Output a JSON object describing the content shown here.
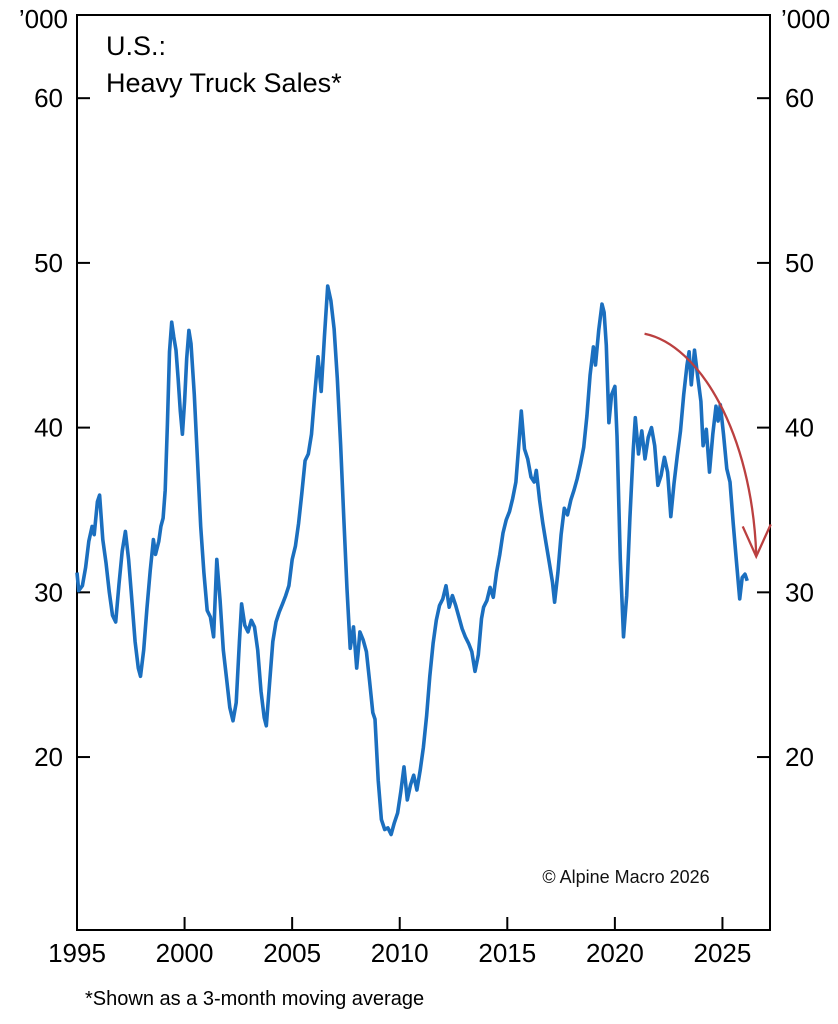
{
  "chart_data": {
    "type": "line",
    "title_line1": "U.S.:",
    "title_line2": "Heavy Truck Sales*",
    "unit_label_left": "’000",
    "unit_label_right": "’000",
    "copyright": "© Alpine Macro 2026",
    "footnote": "*Shown as a 3-month moving average",
    "grid": false,
    "x_axis": {
      "range": [
        1995,
        2027.21
      ],
      "tick_years": [
        2000,
        2005,
        2010,
        2015,
        2020,
        2025
      ],
      "labels": [
        {
          "text": "1995",
          "year": 1995
        },
        {
          "text": "2000",
          "year": 2000
        },
        {
          "text": "2005",
          "year": 2005
        },
        {
          "text": "2010",
          "year": 2010
        },
        {
          "text": "2015",
          "year": 2015
        },
        {
          "text": "2020",
          "year": 2020
        },
        {
          "text": "2025",
          "year": 2025
        }
      ]
    },
    "y_axis": {
      "range": [
        9.5,
        65.05
      ],
      "ticks": [
        20,
        30,
        40,
        50,
        60
      ]
    },
    "series": [
      {
        "name": "heavy-truck-sales-3mma",
        "color": "#1b6fbf",
        "points": [
          [
            1995.0,
            31.2
          ],
          [
            1995.08,
            30.1
          ],
          [
            1995.25,
            30.4
          ],
          [
            1995.4,
            31.5
          ],
          [
            1995.55,
            33.1
          ],
          [
            1995.7,
            34.0
          ],
          [
            1995.8,
            33.5
          ],
          [
            1995.95,
            35.5
          ],
          [
            1996.05,
            35.9
          ],
          [
            1996.2,
            33.2
          ],
          [
            1996.35,
            31.8
          ],
          [
            1996.5,
            30.0
          ],
          [
            1996.65,
            28.6
          ],
          [
            1996.8,
            28.2
          ],
          [
            1996.95,
            30.5
          ],
          [
            1997.1,
            32.5
          ],
          [
            1997.25,
            33.7
          ],
          [
            1997.4,
            32.0
          ],
          [
            1997.55,
            29.5
          ],
          [
            1997.7,
            27.0
          ],
          [
            1997.85,
            25.4
          ],
          [
            1997.95,
            24.9
          ],
          [
            1998.1,
            26.5
          ],
          [
            1998.25,
            29.0
          ],
          [
            1998.4,
            31.3
          ],
          [
            1998.55,
            33.2
          ],
          [
            1998.65,
            32.3
          ],
          [
            1998.8,
            33.1
          ],
          [
            1998.9,
            34.0
          ],
          [
            1999.0,
            34.5
          ],
          [
            1999.1,
            36.2
          ],
          [
            1999.2,
            40.2
          ],
          [
            1999.3,
            44.6
          ],
          [
            1999.4,
            46.4
          ],
          [
            1999.5,
            45.5
          ],
          [
            1999.6,
            44.7
          ],
          [
            1999.7,
            43.0
          ],
          [
            1999.8,
            41.0
          ],
          [
            1999.9,
            39.6
          ],
          [
            2000.0,
            41.6
          ],
          [
            2000.1,
            44.2
          ],
          [
            2000.2,
            45.9
          ],
          [
            2000.3,
            45.1
          ],
          [
            2000.45,
            42.0
          ],
          [
            2000.6,
            38.0
          ],
          [
            2000.75,
            34.0
          ],
          [
            2000.9,
            31.2
          ],
          [
            2001.05,
            28.9
          ],
          [
            2001.2,
            28.5
          ],
          [
            2001.35,
            27.3
          ],
          [
            2001.5,
            32.0
          ],
          [
            2001.65,
            29.5
          ],
          [
            2001.8,
            26.5
          ],
          [
            2001.95,
            24.8
          ],
          [
            2002.1,
            23.0
          ],
          [
            2002.25,
            22.2
          ],
          [
            2002.4,
            23.3
          ],
          [
            2002.55,
            27.0
          ],
          [
            2002.65,
            29.3
          ],
          [
            2002.8,
            28.0
          ],
          [
            2002.95,
            27.6
          ],
          [
            2003.1,
            28.3
          ],
          [
            2003.25,
            27.9
          ],
          [
            2003.4,
            26.5
          ],
          [
            2003.55,
            24.0
          ],
          [
            2003.7,
            22.4
          ],
          [
            2003.8,
            21.9
          ],
          [
            2003.95,
            24.5
          ],
          [
            2004.1,
            27.0
          ],
          [
            2004.25,
            28.2
          ],
          [
            2004.4,
            28.8
          ],
          [
            2004.55,
            29.3
          ],
          [
            2004.7,
            29.8
          ],
          [
            2004.85,
            30.4
          ],
          [
            2005.0,
            32.0
          ],
          [
            2005.15,
            32.8
          ],
          [
            2005.3,
            34.2
          ],
          [
            2005.45,
            36.0
          ],
          [
            2005.6,
            38.0
          ],
          [
            2005.75,
            38.4
          ],
          [
            2005.9,
            39.6
          ],
          [
            2006.05,
            42.0
          ],
          [
            2006.2,
            44.3
          ],
          [
            2006.35,
            42.2
          ],
          [
            2006.5,
            45.5
          ],
          [
            2006.65,
            48.6
          ],
          [
            2006.8,
            47.7
          ],
          [
            2006.95,
            46.0
          ],
          [
            2007.1,
            43.0
          ],
          [
            2007.25,
            39.0
          ],
          [
            2007.4,
            34.5
          ],
          [
            2007.55,
            30.2
          ],
          [
            2007.7,
            26.6
          ],
          [
            2007.85,
            27.9
          ],
          [
            2008.0,
            25.4
          ],
          [
            2008.15,
            27.6
          ],
          [
            2008.3,
            27.1
          ],
          [
            2008.45,
            26.4
          ],
          [
            2008.6,
            24.6
          ],
          [
            2008.75,
            22.7
          ],
          [
            2008.85,
            22.3
          ],
          [
            2009.0,
            18.6
          ],
          [
            2009.15,
            16.2
          ],
          [
            2009.3,
            15.6
          ],
          [
            2009.45,
            15.7
          ],
          [
            2009.6,
            15.3
          ],
          [
            2009.75,
            16.0
          ],
          [
            2009.9,
            16.6
          ],
          [
            2010.05,
            17.9
          ],
          [
            2010.2,
            19.4
          ],
          [
            2010.35,
            17.4
          ],
          [
            2010.5,
            18.3
          ],
          [
            2010.65,
            18.9
          ],
          [
            2010.8,
            18.0
          ],
          [
            2010.95,
            19.2
          ],
          [
            2011.1,
            20.6
          ],
          [
            2011.25,
            22.5
          ],
          [
            2011.4,
            24.9
          ],
          [
            2011.55,
            26.9
          ],
          [
            2011.7,
            28.3
          ],
          [
            2011.85,
            29.2
          ],
          [
            2012.0,
            29.6
          ],
          [
            2012.15,
            30.4
          ],
          [
            2012.3,
            29.1
          ],
          [
            2012.45,
            29.8
          ],
          [
            2012.6,
            29.2
          ],
          [
            2012.75,
            28.5
          ],
          [
            2012.9,
            27.8
          ],
          [
            2013.05,
            27.3
          ],
          [
            2013.2,
            26.9
          ],
          [
            2013.35,
            26.4
          ],
          [
            2013.5,
            25.2
          ],
          [
            2013.65,
            26.2
          ],
          [
            2013.8,
            28.4
          ],
          [
            2013.9,
            29.1
          ],
          [
            2014.05,
            29.5
          ],
          [
            2014.2,
            30.3
          ],
          [
            2014.35,
            29.7
          ],
          [
            2014.5,
            31.2
          ],
          [
            2014.65,
            32.3
          ],
          [
            2014.8,
            33.6
          ],
          [
            2014.95,
            34.4
          ],
          [
            2015.1,
            34.9
          ],
          [
            2015.25,
            35.7
          ],
          [
            2015.4,
            36.7
          ],
          [
            2015.55,
            39.2
          ],
          [
            2015.65,
            41.0
          ],
          [
            2015.8,
            38.7
          ],
          [
            2015.95,
            38.1
          ],
          [
            2016.1,
            37.0
          ],
          [
            2016.25,
            36.7
          ],
          [
            2016.35,
            37.4
          ],
          [
            2016.5,
            35.6
          ],
          [
            2016.65,
            34.2
          ],
          [
            2016.8,
            33.0
          ],
          [
            2016.95,
            31.8
          ],
          [
            2017.1,
            30.6
          ],
          [
            2017.2,
            29.4
          ],
          [
            2017.35,
            31.2
          ],
          [
            2017.5,
            33.5
          ],
          [
            2017.65,
            35.1
          ],
          [
            2017.8,
            34.7
          ],
          [
            2017.95,
            35.6
          ],
          [
            2018.1,
            36.2
          ],
          [
            2018.25,
            36.9
          ],
          [
            2018.4,
            37.8
          ],
          [
            2018.55,
            38.8
          ],
          [
            2018.7,
            40.7
          ],
          [
            2018.85,
            43.2
          ],
          [
            2019.0,
            44.9
          ],
          [
            2019.1,
            43.8
          ],
          [
            2019.25,
            45.9
          ],
          [
            2019.4,
            47.5
          ],
          [
            2019.5,
            47.0
          ],
          [
            2019.6,
            45.0
          ],
          [
            2019.72,
            40.3
          ],
          [
            2019.85,
            42.0
          ],
          [
            2020.0,
            42.5
          ],
          [
            2020.1,
            39.5
          ],
          [
            2020.25,
            32.0
          ],
          [
            2020.4,
            27.3
          ],
          [
            2020.55,
            29.8
          ],
          [
            2020.7,
            34.5
          ],
          [
            2020.85,
            38.6
          ],
          [
            2020.95,
            40.6
          ],
          [
            2021.1,
            38.4
          ],
          [
            2021.25,
            39.8
          ],
          [
            2021.4,
            38.1
          ],
          [
            2021.55,
            39.4
          ],
          [
            2021.7,
            40.0
          ],
          [
            2021.85,
            38.9
          ],
          [
            2022.0,
            36.5
          ],
          [
            2022.15,
            37.1
          ],
          [
            2022.3,
            38.2
          ],
          [
            2022.45,
            37.3
          ],
          [
            2022.6,
            34.6
          ],
          [
            2022.75,
            36.6
          ],
          [
            2022.9,
            38.3
          ],
          [
            2023.05,
            39.8
          ],
          [
            2023.2,
            42.0
          ],
          [
            2023.35,
            43.8
          ],
          [
            2023.45,
            44.6
          ],
          [
            2023.55,
            42.6
          ],
          [
            2023.7,
            44.7
          ],
          [
            2023.85,
            43.1
          ],
          [
            2024.0,
            41.6
          ],
          [
            2024.1,
            38.9
          ],
          [
            2024.25,
            39.9
          ],
          [
            2024.4,
            37.3
          ],
          [
            2024.55,
            39.6
          ],
          [
            2024.7,
            41.3
          ],
          [
            2024.8,
            40.4
          ],
          [
            2024.9,
            41.4
          ],
          [
            2025.05,
            39.6
          ],
          [
            2025.2,
            37.5
          ],
          [
            2025.35,
            36.7
          ],
          [
            2025.5,
            34.2
          ],
          [
            2025.65,
            31.9
          ],
          [
            2025.8,
            29.6
          ],
          [
            2025.92,
            30.9
          ],
          [
            2026.05,
            31.1
          ],
          [
            2026.15,
            30.7
          ]
        ]
      }
    ],
    "annotation_arrow": {
      "name": "decline-arrow",
      "color": "#bb4040",
      "start": [
        2021.38,
        45.7
      ],
      "end": [
        2026.57,
        32.3
      ]
    }
  }
}
